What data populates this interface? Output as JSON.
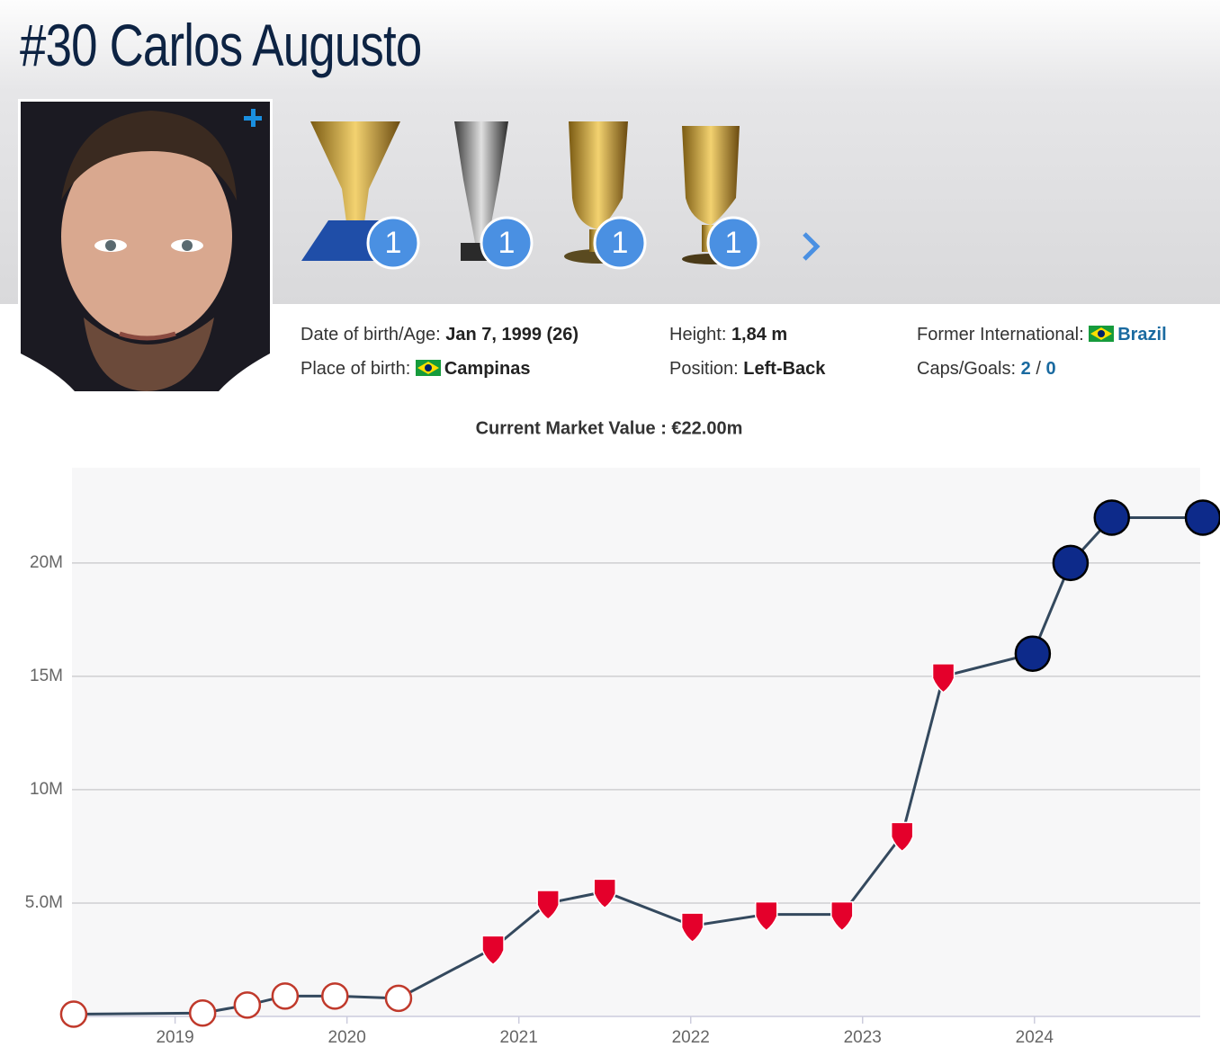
{
  "header": {
    "title": "#30 Carlos Augusto",
    "trophies": [
      {
        "count": 1
      },
      {
        "count": 1
      },
      {
        "count": 1
      },
      {
        "count": 1
      }
    ],
    "info": {
      "birth": {
        "label": "Date of birth/Age:",
        "value": "Jan 7, 1999 (26)"
      },
      "place": {
        "label": "Place of birth:",
        "value": "Campinas"
      },
      "height": {
        "label": "Height:",
        "value": "1,84 m"
      },
      "position": {
        "label": "Position:",
        "value": "Left-Back"
      },
      "international": {
        "label": "Former International:",
        "value": "Brazil"
      },
      "caps_goals": {
        "label": "Caps/Goals:",
        "caps": 2,
        "separator": "/",
        "goals": 0
      }
    }
  },
  "chart_data": {
    "type": "line",
    "title": "Current Market Value : €22.00m",
    "x": [
      2018.41,
      2019.16,
      2019.42,
      2019.64,
      2019.93,
      2020.3,
      2020.85,
      2021.17,
      2021.5,
      2022.01,
      2022.44,
      2022.88,
      2023.23,
      2023.47,
      2023.99,
      2024.21,
      2024.45,
      2024.98
    ],
    "values": [
      0.1,
      0.15,
      0.5,
      0.9,
      0.9,
      0.8,
      3,
      5,
      5.5,
      4,
      4.5,
      4.5,
      8,
      15,
      16,
      20,
      22,
      22
    ],
    "point_colors": [
      "#ffffff",
      "#ffffff",
      "#ffffff",
      "#ffffff",
      "#ffffff",
      "#ffffff",
      "#e4002b",
      "#e4002b",
      "#e4002b",
      "#e4002b",
      "#e4002b",
      "#e4002b",
      "#e4002b",
      "#e4002b",
      "#0d2a8a",
      "#0d2a8a",
      "#0d2a8a",
      "#0d2a8a"
    ],
    "color": "#34495e",
    "xlim": [
      2018.4,
      2024.98
    ],
    "ylim": [
      0,
      24.2
    ],
    "xticks": [
      2019,
      2020,
      2021,
      2022,
      2023,
      2024
    ],
    "yticks": [
      {
        "value": 5,
        "label": "5.0M"
      },
      {
        "value": 10,
        "label": "10M"
      },
      {
        "value": 15,
        "label": "15M"
      },
      {
        "value": 20,
        "label": "20M"
      }
    ],
    "grid": true
  }
}
